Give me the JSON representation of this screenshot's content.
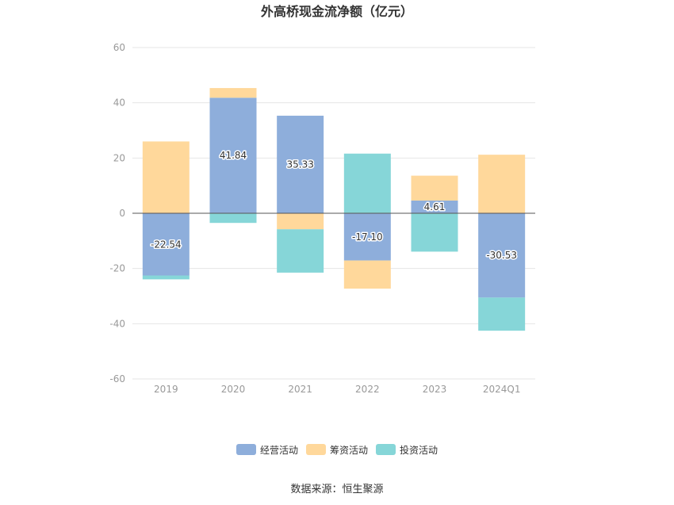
{
  "chart_data": {
    "type": "bar",
    "stacked": true,
    "title": "外高桥现金流净额（亿元）",
    "categories": [
      "2019",
      "2020",
      "2021",
      "2022",
      "2023",
      "2024Q1"
    ],
    "ylim": [
      -60,
      60
    ],
    "yticks": [
      60,
      40,
      20,
      0,
      -20,
      -40,
      -60
    ],
    "grid": true,
    "legend_position": "bottom",
    "series": [
      {
        "name": "经营活动",
        "color": "#8eaedb",
        "values": [
          -22.54,
          41.84,
          35.33,
          -17.1,
          4.61,
          -30.53
        ],
        "labels": [
          "-22.54",
          "41.84",
          "35.33",
          "-17.10",
          "4.61",
          "-30.53"
        ]
      },
      {
        "name": "筹资活动",
        "color": "#ffd89b",
        "values": [
          26.0,
          3.5,
          -5.8,
          -10.2,
          9.0,
          21.2
        ]
      },
      {
        "name": "投资活动",
        "color": "#86d6d8",
        "values": [
          -1.4,
          -3.5,
          -15.7,
          21.6,
          -13.9,
          -12.0
        ]
      }
    ],
    "source": "数据来源：恒生聚源"
  }
}
